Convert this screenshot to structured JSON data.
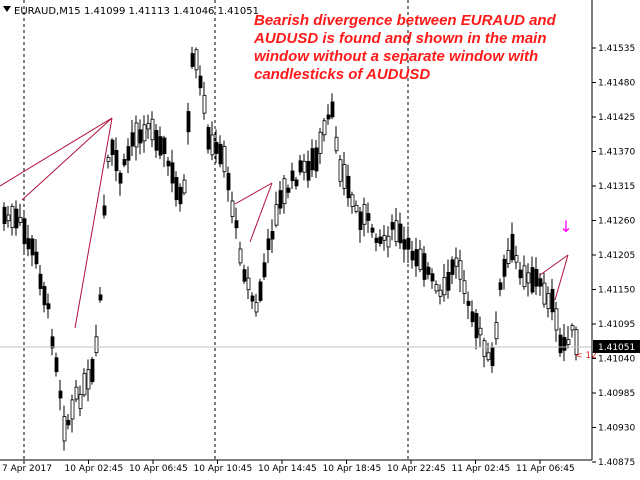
{
  "header": {
    "symbol": "EURAUD,M15",
    "ohlc": "1.41099 1.41113 1.41046 1.41051"
  },
  "annotation": {
    "lines": [
      "Bearish divergence between EURAUD and",
      "AUDUSD is found and shown in the main",
      "window without  a separate window with",
      "candlesticks of AUDUSD"
    ]
  },
  "current_price": "1.41051",
  "side_marker": "< 12",
  "chart_data": {
    "type": "candlestick",
    "title": "EURAUD,M15",
    "ylim": [
      1.40875,
      1.41755
    ],
    "y_ticks": [
      "1.41535",
      "1.41480",
      "1.41425",
      "1.41370",
      "1.41315",
      "1.41260",
      "1.41205",
      "1.41150",
      "1.41095",
      "1.41040",
      "1.40985",
      "1.40930",
      "1.40875"
    ],
    "x_ticks": [
      "7 Apr 2017",
      "10 Apr 02:45",
      "10 Apr 06:45",
      "10 Apr 10:45",
      "10 Apr 14:45",
      "10 Apr 18:45",
      "10 Apr 22:45",
      "11 Apr 02:45",
      "11 Apr 06:45"
    ],
    "grid": false,
    "colors": {
      "candle": "#000000",
      "divergence": "#b0103a",
      "arrow": "#ff00ff",
      "price_label": "#000000"
    }
  }
}
